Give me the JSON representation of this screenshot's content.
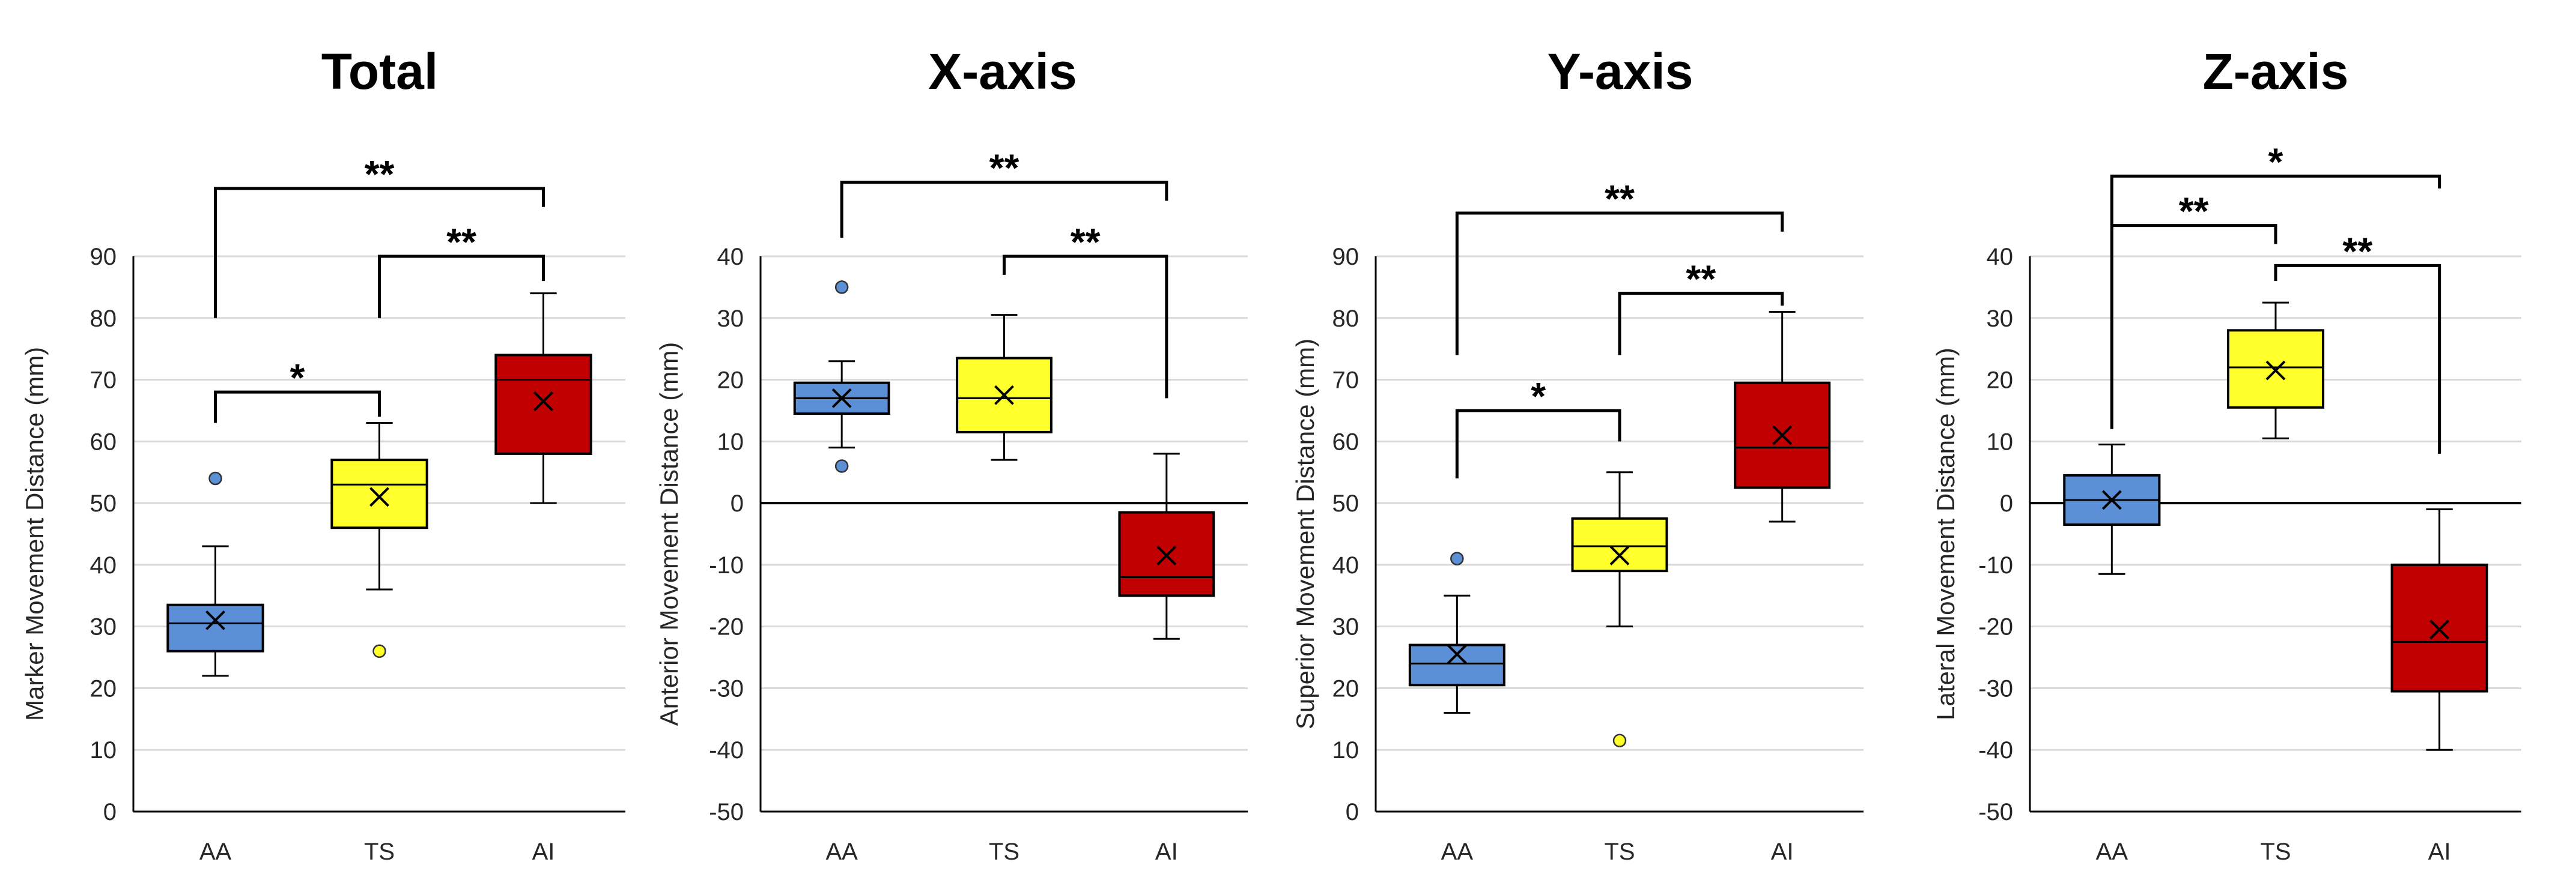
{
  "colors": {
    "AA": "#5b8fd6",
    "TS": "#ffff2b",
    "AI": "#c00000",
    "outline": "#000000",
    "grid": "#d9d9d9"
  },
  "chart_data": [
    {
      "type": "box",
      "title": "Total",
      "ylabel": "Marker Movement Distance (mm)",
      "categories": [
        "AA",
        "TS",
        "AI"
      ],
      "ylim": [
        0,
        90
      ],
      "yticks": [
        0,
        10,
        20,
        30,
        40,
        50,
        60,
        70,
        80,
        90
      ],
      "zero_line": false,
      "boxes": [
        {
          "name": "AA",
          "min": 22,
          "q1": 26,
          "median": 30.5,
          "q3": 33.5,
          "max": 43,
          "mean": 31,
          "outliers": [
            54
          ]
        },
        {
          "name": "TS",
          "min": 36,
          "q1": 46,
          "median": 53,
          "q3": 57,
          "max": 63,
          "mean": 51,
          "outliers": [
            26
          ]
        },
        {
          "name": "AI",
          "min": 50,
          "q1": 58,
          "median": 70,
          "q3": 74,
          "max": 84,
          "mean": 66.5,
          "outliers": []
        }
      ],
      "significance": [
        {
          "from": "AA",
          "to": "TS",
          "label": "*",
          "top": 68,
          "from_end": 63,
          "to_end": 64
        },
        {
          "from": "TS",
          "to": "AI",
          "label": "**",
          "top": 90,
          "from_end": 80,
          "to_end": 86
        },
        {
          "from": "AA",
          "to": "AI",
          "label": "**",
          "top": 101,
          "from_end": 80,
          "to_end": 98
        }
      ]
    },
    {
      "type": "box",
      "title": "X-axis",
      "ylabel": "Anterior Movement Distance (mm)",
      "categories": [
        "AA",
        "TS",
        "AI"
      ],
      "ylim": [
        -50,
        40
      ],
      "yticks": [
        -50,
        -40,
        -30,
        -20,
        -10,
        0,
        10,
        20,
        30,
        40
      ],
      "zero_line": true,
      "boxes": [
        {
          "name": "AA",
          "min": 9,
          "q1": 14.5,
          "median": 17,
          "q3": 19.5,
          "max": 23,
          "mean": 17,
          "outliers": [
            35,
            6
          ]
        },
        {
          "name": "TS",
          "min": 7,
          "q1": 11.5,
          "median": 17,
          "q3": 23.5,
          "max": 30.5,
          "mean": 17.5,
          "outliers": []
        },
        {
          "name": "AI",
          "min": -22,
          "q1": -15,
          "median": -12,
          "q3": -1.5,
          "max": 8,
          "mean": -8.5,
          "outliers": []
        }
      ],
      "significance": [
        {
          "from": "TS",
          "to": "AI",
          "label": "**",
          "top": 40,
          "from_end": 37,
          "to_end": 17
        },
        {
          "from": "AA",
          "to": "AI",
          "label": "**",
          "top": 52,
          "from_end": 43,
          "to_end": 49
        }
      ]
    },
    {
      "type": "box",
      "title": "Y-axis",
      "ylabel": "Superior Movement Distance (mm)",
      "categories": [
        "AA",
        "TS",
        "AI"
      ],
      "ylim": [
        0,
        90
      ],
      "yticks": [
        0,
        10,
        20,
        30,
        40,
        50,
        60,
        70,
        80,
        90
      ],
      "zero_line": false,
      "boxes": [
        {
          "name": "AA",
          "min": 16,
          "q1": 20.5,
          "median": 24,
          "q3": 27,
          "max": 35,
          "mean": 25.5,
          "outliers": [
            41
          ]
        },
        {
          "name": "TS",
          "min": 30,
          "q1": 39,
          "median": 43,
          "q3": 47.5,
          "max": 55,
          "mean": 41.5,
          "outliers": [
            11.5
          ]
        },
        {
          "name": "AI",
          "min": 47,
          "q1": 52.5,
          "median": 59,
          "q3": 69.5,
          "max": 81,
          "mean": 61,
          "outliers": []
        }
      ],
      "significance": [
        {
          "from": "AA",
          "to": "TS",
          "label": "*",
          "top": 65,
          "from_end": 54,
          "to_end": 60
        },
        {
          "from": "TS",
          "to": "AI",
          "label": "**",
          "top": 84,
          "from_end": 74,
          "to_end": 82
        },
        {
          "from": "AA",
          "to": "AI",
          "label": "**",
          "top": 97,
          "from_end": 74,
          "to_end": 94
        }
      ]
    },
    {
      "type": "box",
      "title": "Z-axis",
      "ylabel": "Lateral Movement Distance (mm)",
      "categories": [
        "AA",
        "TS",
        "AI"
      ],
      "ylim": [
        -50,
        40
      ],
      "yticks": [
        -50,
        -40,
        -30,
        -20,
        -10,
        0,
        10,
        20,
        30,
        40
      ],
      "zero_line": true,
      "boxes": [
        {
          "name": "AA",
          "min": -11.5,
          "q1": -3.5,
          "median": 0.5,
          "q3": 4.5,
          "max": 9.5,
          "mean": 0.5,
          "outliers": []
        },
        {
          "name": "TS",
          "min": 10.5,
          "q1": 15.5,
          "median": 22,
          "q3": 28,
          "max": 32.5,
          "mean": 21.5,
          "outliers": []
        },
        {
          "name": "AI",
          "min": -40,
          "q1": -30.5,
          "median": -22.5,
          "q3": -10,
          "max": -1,
          "mean": -20.5,
          "outliers": []
        }
      ],
      "significance": [
        {
          "from": "TS",
          "to": "AI",
          "label": "**",
          "top": 38.5,
          "from_end": 36,
          "to_end": 8
        },
        {
          "from": "AA",
          "to": "TS",
          "label": "**",
          "top": 45,
          "from_end": 12,
          "to_end": 42
        },
        {
          "from": "AA",
          "to": "AI",
          "label": "*",
          "top": 53,
          "from_end": 45,
          "to_end": 51
        }
      ]
    }
  ]
}
